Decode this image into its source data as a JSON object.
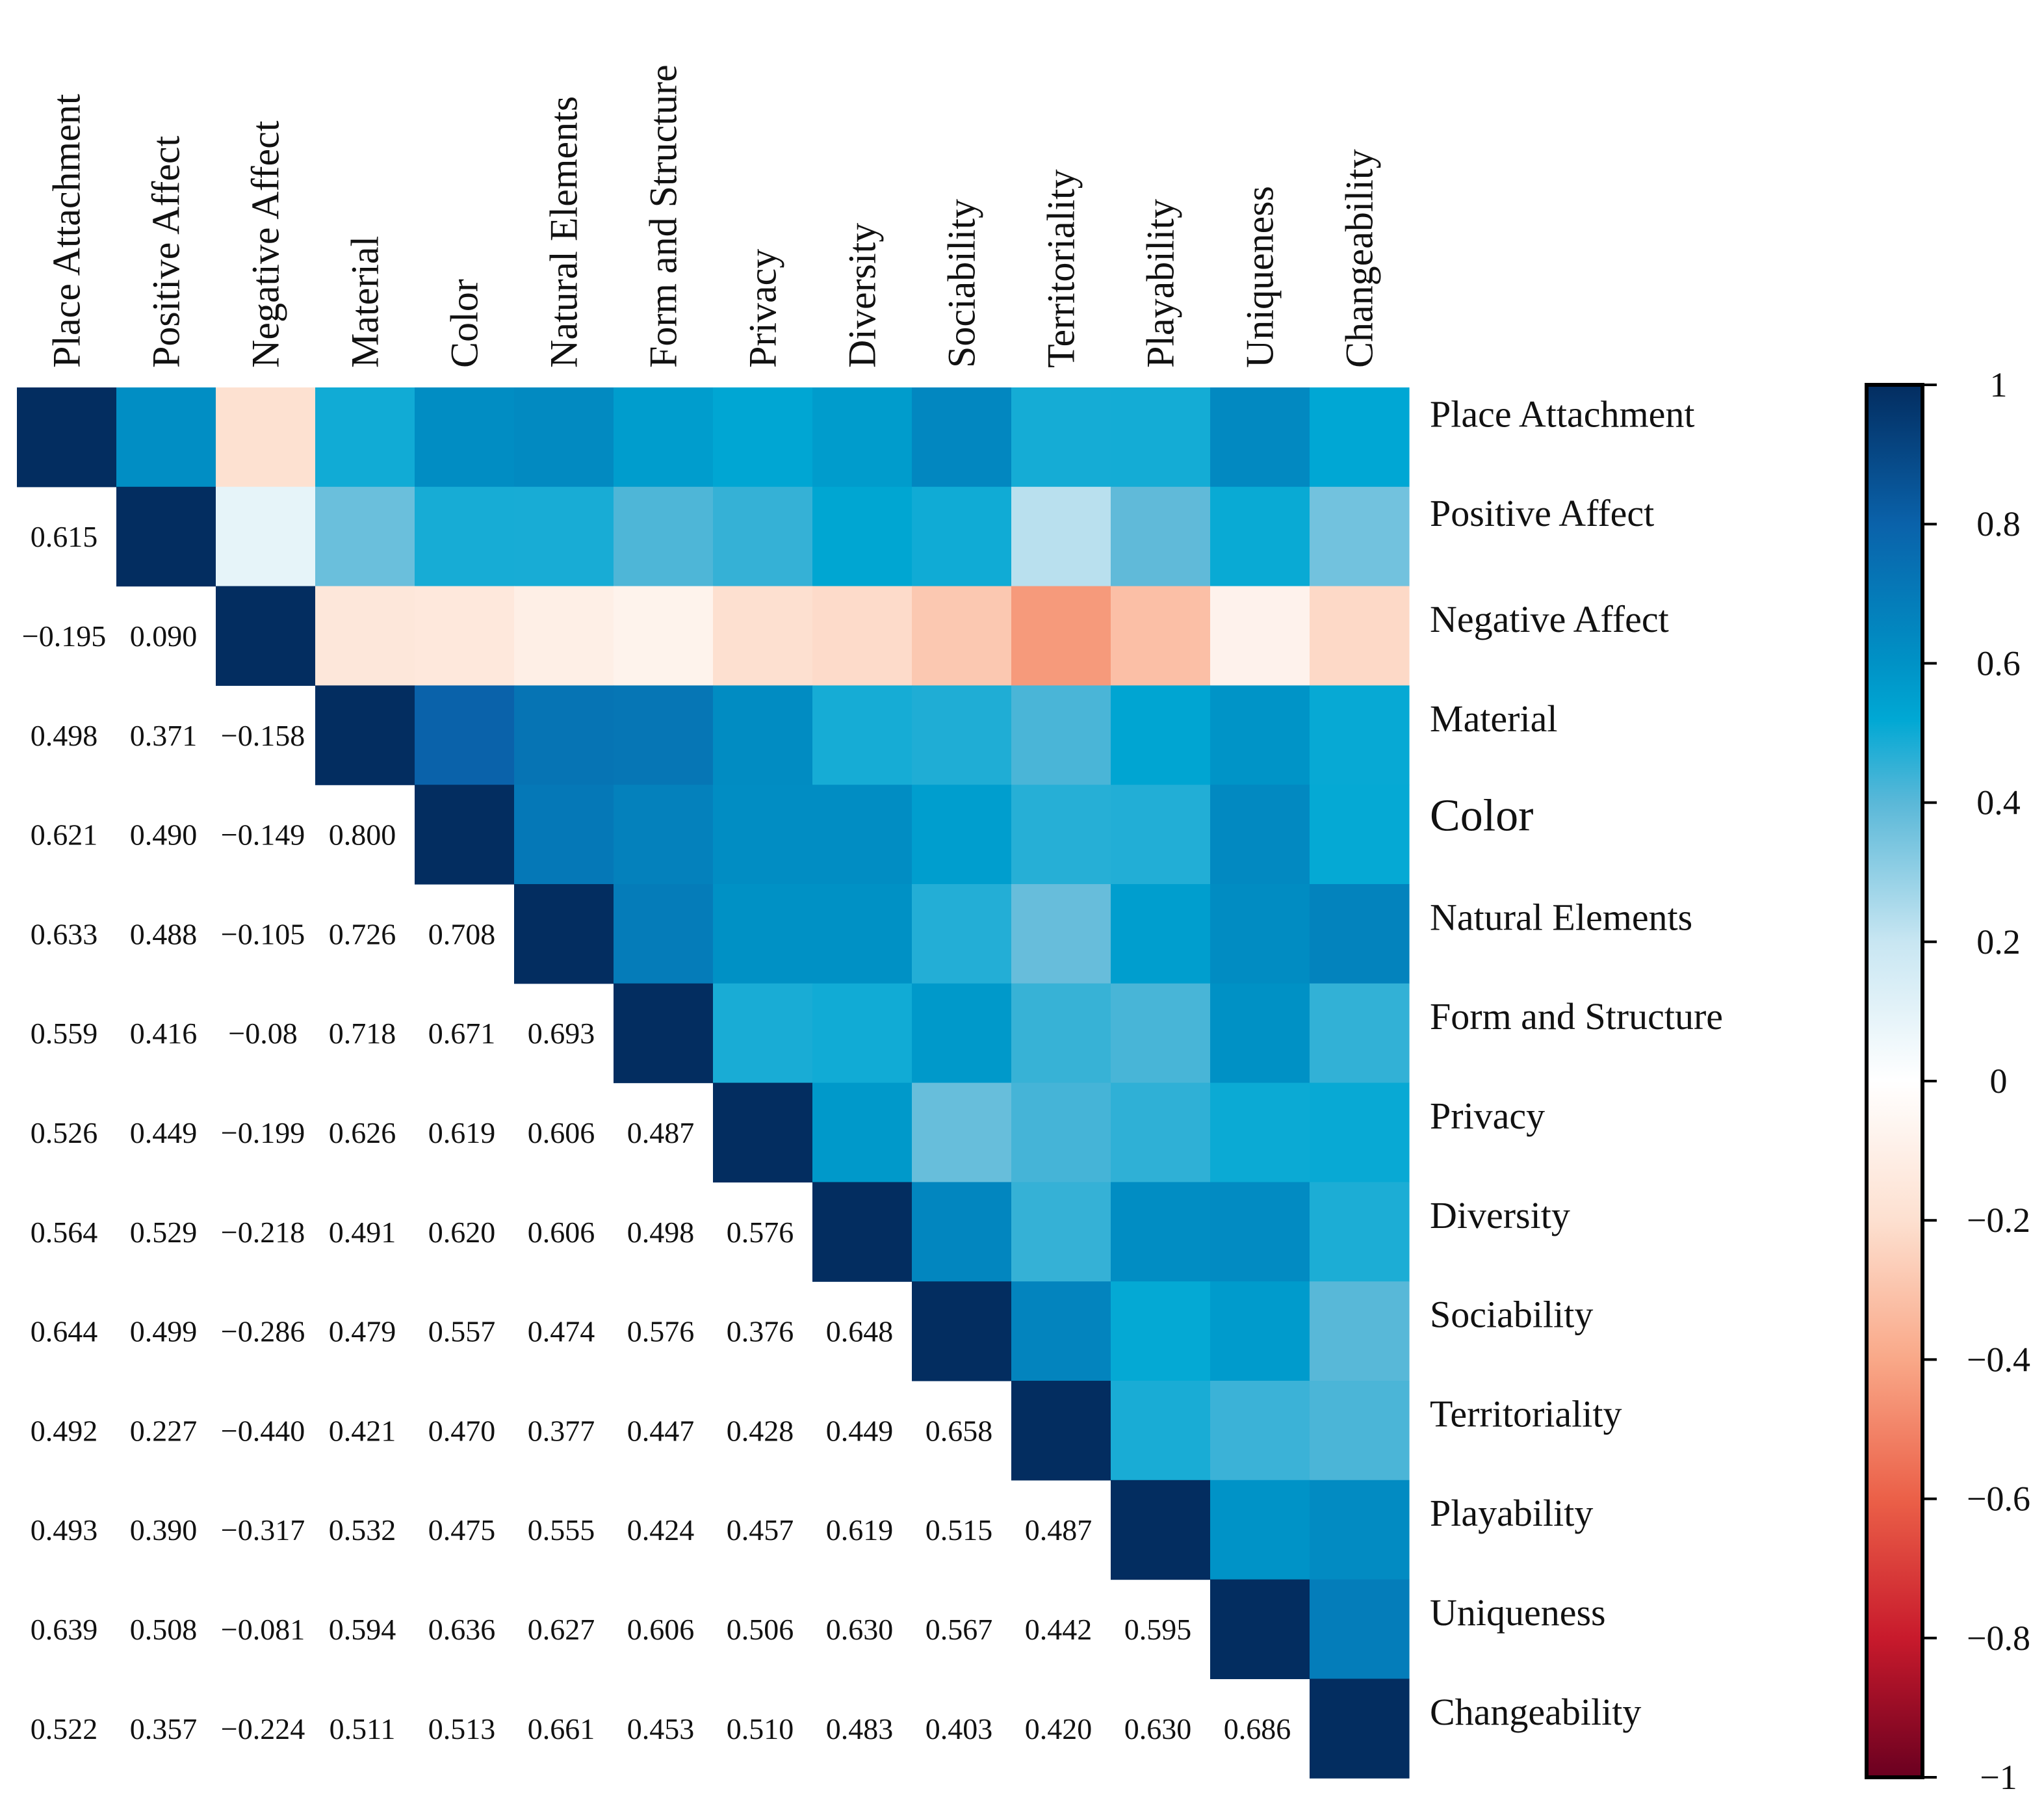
{
  "chart_data": {
    "type": "heatmap",
    "title": "",
    "variables": [
      "Place Attachment",
      "Positive Affect",
      "Negative Affect",
      "Material",
      "Color",
      "Natural Elements",
      "Form and Structure",
      "Privacy",
      "Diversity",
      "Sociability",
      "Territoriality",
      "Playability",
      "Uniqueness",
      "Changeability"
    ],
    "lower_triangle_labels": [
      [],
      [
        "0.615"
      ],
      [
        "−0.195",
        "0.090"
      ],
      [
        "0.498",
        "0.371",
        "−0.158"
      ],
      [
        "0.621",
        "0.490",
        "−0.149",
        "0.800"
      ],
      [
        "0.633",
        "0.488",
        "−0.105",
        "0.726",
        "0.708"
      ],
      [
        "0.559",
        "0.416",
        "−0.08",
        "0.718",
        "0.671",
        "0.693"
      ],
      [
        "0.526",
        "0.449",
        "−0.199",
        "0.626",
        "0.619",
        "0.606",
        "0.487"
      ],
      [
        "0.564",
        "0.529",
        "−0.218",
        "0.491",
        "0.620",
        "0.606",
        "0.498",
        "0.576"
      ],
      [
        "0.644",
        "0.499",
        "−0.286",
        "0.479",
        "0.557",
        "0.474",
        "0.576",
        "0.376",
        "0.648"
      ],
      [
        "0.492",
        "0.227",
        "−0.440",
        "0.421",
        "0.470",
        "0.377",
        "0.447",
        "0.428",
        "0.449",
        "0.658"
      ],
      [
        "0.493",
        "0.390",
        "−0.317",
        "0.532",
        "0.475",
        "0.555",
        "0.424",
        "0.457",
        "0.619",
        "0.515",
        "0.487"
      ],
      [
        "0.639",
        "0.508",
        "−0.081",
        "0.594",
        "0.636",
        "0.627",
        "0.606",
        "0.506",
        "0.630",
        "0.567",
        "0.442",
        "0.595"
      ],
      [
        "0.522",
        "0.357",
        "−0.224",
        "0.511",
        "0.513",
        "0.661",
        "0.453",
        "0.510",
        "0.483",
        "0.403",
        "0.420",
        "0.630",
        "0.686"
      ]
    ],
    "lower_triangle_values": [
      [],
      [
        0.615
      ],
      [
        -0.195,
        0.09
      ],
      [
        0.498,
        0.371,
        -0.158
      ],
      [
        0.621,
        0.49,
        -0.149,
        0.8
      ],
      [
        0.633,
        0.488,
        -0.105,
        0.726,
        0.708
      ],
      [
        0.559,
        0.416,
        -0.08,
        0.718,
        0.671,
        0.693
      ],
      [
        0.526,
        0.449,
        -0.199,
        0.626,
        0.619,
        0.606,
        0.487
      ],
      [
        0.564,
        0.529,
        -0.218,
        0.491,
        0.62,
        0.606,
        0.498,
        0.576
      ],
      [
        0.644,
        0.499,
        -0.286,
        0.479,
        0.557,
        0.474,
        0.576,
        0.376,
        0.648
      ],
      [
        0.492,
        0.227,
        -0.44,
        0.421,
        0.47,
        0.377,
        0.447,
        0.428,
        0.449,
        0.658
      ],
      [
        0.493,
        0.39,
        -0.317,
        0.532,
        0.475,
        0.555,
        0.424,
        0.457,
        0.619,
        0.515,
        0.487
      ],
      [
        0.639,
        0.508,
        -0.081,
        0.594,
        0.636,
        0.627,
        0.606,
        0.506,
        0.63,
        0.567,
        0.442,
        0.595
      ],
      [
        0.522,
        0.357,
        -0.224,
        0.511,
        0.513,
        0.661,
        0.453,
        0.51,
        0.483,
        0.403,
        0.42,
        0.63,
        0.686
      ]
    ],
    "diagonal_value": 1,
    "upper_triangle": "color-coded (mirror of lower triangle)",
    "colorbar": {
      "range": [
        -1,
        1
      ],
      "tick_labels": [
        "1",
        "0.8",
        "0.6",
        "0.4",
        "0.2",
        "0",
        "−0.2",
        "−0.4",
        "−0.6",
        "−0.8",
        "−1"
      ],
      "tick_values": [
        1,
        0.8,
        0.6,
        0.4,
        0.2,
        0,
        -0.2,
        -0.4,
        -0.6,
        -0.8,
        -1
      ],
      "colormap_stops": [
        {
          "v": -1,
          "c": "#6a0020"
        },
        {
          "v": -0.8,
          "c": "#c81a2c"
        },
        {
          "v": -0.6,
          "c": "#eb6048"
        },
        {
          "v": -0.4,
          "c": "#f9a888"
        },
        {
          "v": -0.2,
          "c": "#fde0d0"
        },
        {
          "v": 0,
          "c": "#ffffff"
        },
        {
          "v": 0.2,
          "c": "#c8e6f2"
        },
        {
          "v": 0.4,
          "c": "#5ab8d8"
        },
        {
          "v": 0.52,
          "c": "#00a8d4"
        },
        {
          "v": 0.6,
          "c": "#0092c6"
        },
        {
          "v": 0.8,
          "c": "#0a62aa"
        },
        {
          "v": 1,
          "c": "#032d60"
        }
      ]
    },
    "legend": "right"
  }
}
